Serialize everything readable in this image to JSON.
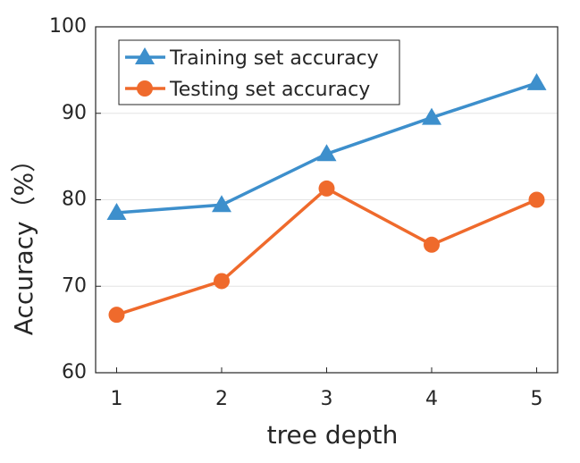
{
  "chart_data": {
    "type": "line",
    "x_label": "tree depth",
    "y_label": "Accuracy（%）",
    "x": [
      1,
      2,
      3,
      4,
      5
    ],
    "series": [
      {
        "name": "Training set accuracy",
        "color": "#3d8fcc",
        "marker": "triangle",
        "values": [
          78.5,
          79.4,
          85.3,
          89.5,
          93.5
        ]
      },
      {
        "name": "Testing set accuracy",
        "color": "#ef6a2c",
        "marker": "circle",
        "values": [
          66.7,
          70.6,
          81.3,
          74.8,
          80.0
        ]
      }
    ],
    "xlim": [
      0.8,
      5.2
    ],
    "xticks": [
      1,
      2,
      3,
      4,
      5
    ],
    "ylim": [
      60,
      100
    ],
    "yticks": [
      60,
      70,
      80,
      90,
      100
    ],
    "grid": true,
    "legend": "upper-left"
  }
}
